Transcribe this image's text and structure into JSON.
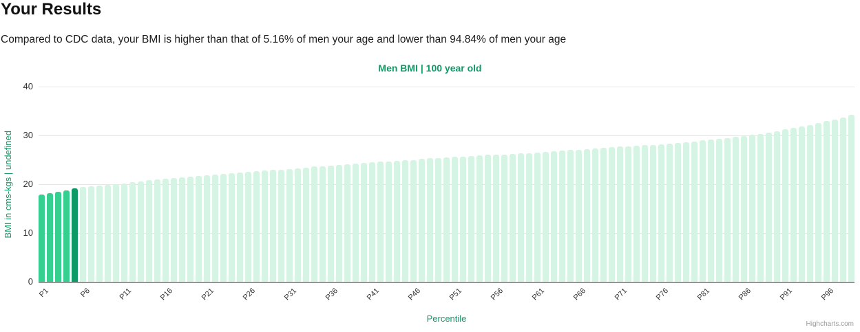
{
  "page": {
    "title": "Your Results",
    "subtitle": "Compared to CDC data, your BMI is higher than that of 5.16% of men your age and lower than 94.84% of men your age"
  },
  "chart": {
    "credits": "Highcharts.com"
  },
  "colors": {
    "accent_green": "#0f9a66",
    "bar_below": "#35cf90",
    "bar_user": "#0d9a66",
    "bar_above": "#d5f4e4",
    "grid": "#e6e6e6",
    "axis_line": "#333333",
    "tick_text": "#333333",
    "credits_text": "#9a9a9a"
  },
  "chart_data": {
    "type": "bar",
    "title": "Men BMI | 100 year old",
    "xlabel": "Percentile",
    "ylabel": "BMI in cms-kgs | undefined",
    "ylim": [
      0,
      40
    ],
    "yticks": [
      0,
      10,
      20,
      30,
      40
    ],
    "grid": true,
    "legend": false,
    "x_category_prefix": "P",
    "x_category_count": 99,
    "x_tick_step": 5,
    "x_tick_labels": [
      "P1",
      "P6",
      "P11",
      "P16",
      "P21",
      "P26",
      "P31",
      "P36",
      "P41",
      "P46",
      "P51",
      "P56",
      "P61",
      "P66",
      "P71",
      "P76",
      "P81",
      "P86",
      "P91",
      "P96"
    ],
    "user_percentile": 5,
    "user_bar_index": 4,
    "values": [
      17.9,
      18.2,
      18.5,
      18.8,
      19.1,
      19.4,
      19.55,
      19.7,
      19.85,
      20.0,
      20.2,
      20.4,
      20.6,
      20.8,
      21.0,
      21.1,
      21.25,
      21.4,
      21.55,
      21.7,
      21.85,
      22.0,
      22.15,
      22.3,
      22.4,
      22.5,
      22.65,
      22.8,
      22.9,
      23.0,
      23.15,
      23.3,
      23.45,
      23.6,
      23.7,
      23.85,
      24.0,
      24.1,
      24.2,
      24.3,
      24.45,
      24.6,
      24.7,
      24.8,
      24.9,
      25.0,
      25.15,
      25.3,
      25.4,
      25.5,
      25.6,
      25.7,
      25.8,
      25.9,
      26.0,
      26.05,
      26.1,
      26.2,
      26.3,
      26.4,
      26.5,
      26.6,
      26.7,
      26.85,
      27.0,
      27.1,
      27.2,
      27.3,
      27.45,
      27.6,
      27.7,
      27.8,
      27.9,
      28.0,
      28.1,
      28.2,
      28.35,
      28.5,
      28.65,
      28.8,
      28.95,
      29.1,
      29.3,
      29.5,
      29.7,
      29.9,
      30.1,
      30.35,
      30.6,
      30.9,
      31.2,
      31.5,
      31.8,
      32.1,
      32.5,
      32.9,
      33.3,
      33.7,
      34.2
    ]
  }
}
